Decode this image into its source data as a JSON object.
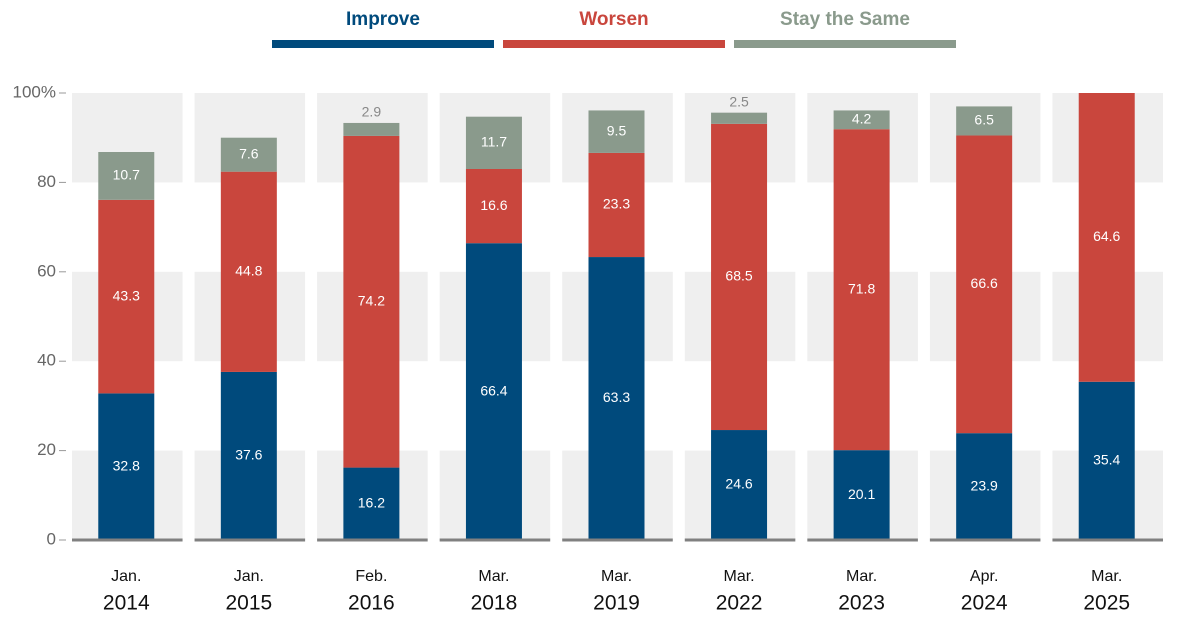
{
  "chart_data": {
    "type": "stacked-bar",
    "categories": [
      [
        "Jan.",
        "2014"
      ],
      [
        "Jan.",
        "2015"
      ],
      [
        "Feb.",
        "2016"
      ],
      [
        "Mar.",
        "2018"
      ],
      [
        "Mar.",
        "2019"
      ],
      [
        "Mar.",
        "2022"
      ],
      [
        "Mar.",
        "2023"
      ],
      [
        "Apr.",
        "2024"
      ],
      [
        "Mar.",
        "2025"
      ]
    ],
    "series": [
      {
        "name": "Improve",
        "color": "#004a7c",
        "values": [
          32.8,
          37.6,
          16.2,
          66.4,
          63.3,
          24.6,
          20.1,
          23.9,
          35.4
        ]
      },
      {
        "name": "Worsen",
        "color": "#c9463d",
        "values": [
          43.3,
          44.8,
          74.2,
          16.6,
          23.3,
          68.5,
          71.8,
          66.6,
          64.6
        ]
      },
      {
        "name": "Stay the Same",
        "color": "#8a9a8c",
        "values": [
          10.7,
          7.6,
          2.9,
          11.7,
          9.5,
          2.5,
          4.2,
          6.5,
          null
        ]
      }
    ],
    "ylim": [
      0,
      100
    ],
    "yticks": [
      0,
      20,
      40,
      60,
      80,
      {
        "value": 100,
        "label": "100%"
      }
    ],
    "legend": "top"
  }
}
